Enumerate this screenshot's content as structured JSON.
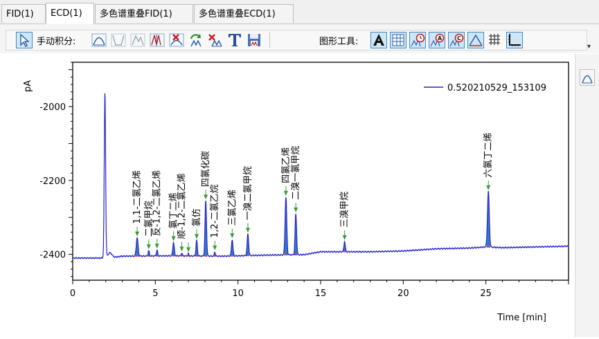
{
  "tabs": [
    {
      "label": "FID(1)",
      "active": false
    },
    {
      "label": "ECD(1)",
      "active": true
    },
    {
      "label": "多色谱重叠FID(1)",
      "active": false
    },
    {
      "label": "多色谱重叠ECD(1)",
      "active": false
    }
  ],
  "toolbar": {
    "manual_integration_label": "手动积分:",
    "graph_tools_label": "图形工具:"
  },
  "icons": {
    "pointer": "cursor-arrow-icon",
    "integration": [
      "peak-integrate-icon",
      "valley-integrate-icon",
      "skim-icon",
      "split-peak-icon",
      "delete-peak-icon",
      "reintegrate-icon",
      "delete-baseline-icon",
      "text-tool-icon",
      "save-icon"
    ],
    "graph": [
      "font-a-icon",
      "table-icon",
      "clock-icon",
      "annotate-a-icon",
      "annotate-c-icon",
      "peak-shape-icon",
      "grid-icon",
      "axis-icon"
    ],
    "side": "peak-shape-icon"
  },
  "colors": {
    "trace": "#2323cc",
    "fill": "#1f6fbf",
    "baseline": "#e03030",
    "marker": "#3a9a3a"
  },
  "chart_data": {
    "type": "line",
    "title": "",
    "xlabel": "Time [min]",
    "ylabel": "pA",
    "xlim": [
      0,
      30
    ],
    "ylim": [
      -2470,
      -1880
    ],
    "xticks": [
      0,
      5,
      10,
      15,
      20,
      25
    ],
    "yticks": [
      -2400,
      -2200,
      -2000
    ],
    "legend": {
      "position": "top-right",
      "entries": [
        "0.520210529_153109"
      ]
    },
    "grid": false,
    "series": [
      {
        "name": "0.520210529_153109",
        "baseline_points": [
          [
            0,
            -2410
          ],
          [
            1.5,
            -2410
          ],
          [
            2.2,
            -2410
          ],
          [
            3,
            -2405
          ],
          [
            6,
            -2404
          ],
          [
            9,
            -2405
          ],
          [
            12,
            -2402
          ],
          [
            14,
            -2401
          ],
          [
            15,
            -2393
          ],
          [
            18,
            -2393
          ],
          [
            20,
            -2391
          ],
          [
            22,
            -2385
          ],
          [
            24,
            -2383
          ],
          [
            25,
            -2380
          ],
          [
            26,
            -2382
          ],
          [
            28,
            -2380
          ],
          [
            30,
            -2378
          ]
        ],
        "solvent_peak": {
          "rt": 1.95,
          "height": -1965,
          "width": 0.09
        },
        "peaks": [
          {
            "rt": 3.9,
            "height": -2355,
            "width": 0.12,
            "label": "1,1-二氯乙烯"
          },
          {
            "rt": 4.6,
            "height": -2390,
            "width": 0.08,
            "label": "二氯甲烷"
          },
          {
            "rt": 5.1,
            "height": -2388,
            "width": 0.08,
            "label": "反-1,2-二氯乙烯"
          },
          {
            "rt": 6.1,
            "height": -2368,
            "width": 0.1,
            "label": "氯丁二烯"
          },
          {
            "rt": 6.6,
            "height": -2396,
            "width": 0.07,
            "label": "顺-1,2-二氯乙烯"
          },
          {
            "rt": 7.0,
            "height": -2398,
            "width": 0.07,
            "label": ""
          },
          {
            "rt": 7.5,
            "height": -2362,
            "width": 0.09,
            "label": "氯仿"
          },
          {
            "rt": 8.05,
            "height": -2255,
            "width": 0.1,
            "label": "四氯化碳"
          },
          {
            "rt": 8.6,
            "height": -2393,
            "width": 0.07,
            "label": "1,2-二氯乙烷"
          },
          {
            "rt": 9.65,
            "height": -2360,
            "width": 0.1,
            "label": "三氯乙烯"
          },
          {
            "rt": 10.6,
            "height": -2345,
            "width": 0.1,
            "label": "一溴二氯甲烷"
          },
          {
            "rt": 12.9,
            "height": -2245,
            "width": 0.11,
            "label": "四氯乙烯"
          },
          {
            "rt": 13.5,
            "height": -2290,
            "width": 0.1,
            "label": "二溴一氯甲烷"
          },
          {
            "rt": 16.45,
            "height": -2365,
            "width": 0.09,
            "label": "三溴甲烷"
          },
          {
            "rt": 25.15,
            "height": -2230,
            "width": 0.12,
            "label": "六氯丁二烯"
          }
        ]
      }
    ]
  }
}
